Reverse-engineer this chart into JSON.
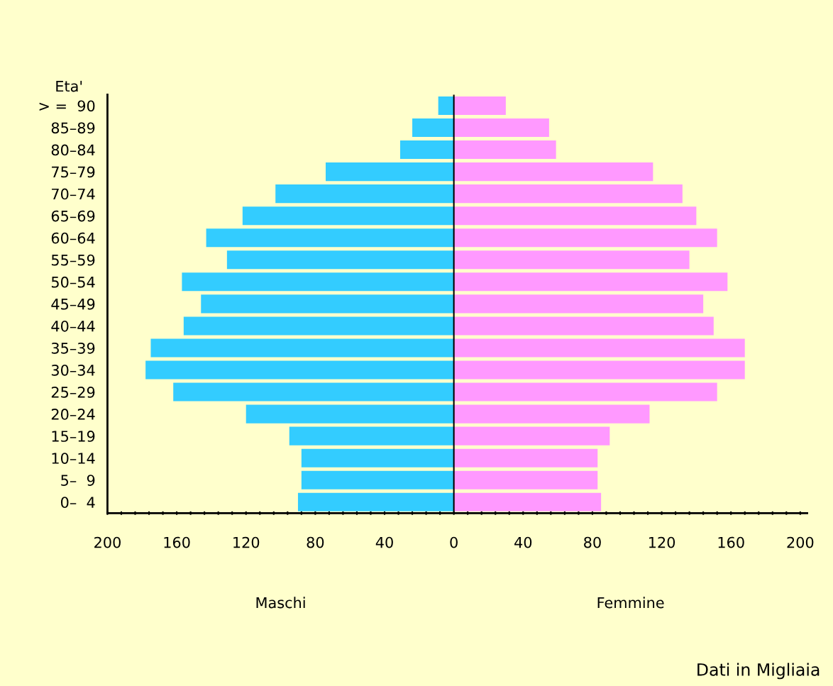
{
  "chart_data": {
    "type": "bar",
    "orientation": "horizontal",
    "stacked": true,
    "ylabel": "Eta'",
    "categories": [
      "> =  90",
      "85–89",
      "80–84",
      "75–79",
      "70–74",
      "65–69",
      "60–64",
      "55–59",
      "50–54",
      "45–49",
      "40–44",
      "35–39",
      "30–34",
      "25–29",
      "20–24",
      "15–19",
      "10–14",
      "5–  9",
      "0–  4"
    ],
    "series": [
      {
        "color": "#33ccff",
        "values": [
          -9,
          -24,
          -31,
          -74,
          -103,
          -122,
          -143,
          -131,
          -157,
          -146,
          -156,
          -175,
          -178,
          -162,
          -120,
          -95,
          -88,
          -88,
          -90
        ]
      },
      {
        "color": "#ff99ff",
        "values": [
          30,
          55,
          59,
          115,
          132,
          140,
          152,
          136,
          158,
          144,
          150,
          168,
          168,
          152,
          113,
          90,
          83,
          83,
          85
        ]
      }
    ],
    "xlim": [
      -200,
      204
    ],
    "xticks": [
      {
        "value": -200,
        "label": "200"
      },
      {
        "value": -192,
        "label": null
      },
      {
        "value": -184,
        "label": null
      },
      {
        "value": -176,
        "label": null
      },
      {
        "value": -168,
        "label": null
      },
      {
        "value": -160,
        "label": "160"
      },
      {
        "value": -152,
        "label": null
      },
      {
        "value": -144,
        "label": null
      },
      {
        "value": -136,
        "label": null
      },
      {
        "value": -128,
        "label": null
      },
      {
        "value": -120,
        "label": "120"
      },
      {
        "value": -112,
        "label": null
      },
      {
        "value": -104,
        "label": null
      },
      {
        "value": -96,
        "label": null
      },
      {
        "value": -88,
        "label": null
      },
      {
        "value": -80,
        "label": "80"
      },
      {
        "value": -72,
        "label": null
      },
      {
        "value": -64,
        "label": null
      },
      {
        "value": -56,
        "label": null
      },
      {
        "value": -48,
        "label": null
      },
      {
        "value": -40,
        "label": "40"
      },
      {
        "value": -32,
        "label": null
      },
      {
        "value": -24,
        "label": null
      },
      {
        "value": -16,
        "label": null
      },
      {
        "value": -8,
        "label": null
      },
      0,
      {
        "value": 8,
        "label": null
      },
      {
        "value": 16,
        "label": null
      },
      {
        "value": 24,
        "label": null
      },
      {
        "value": 32,
        "label": null
      },
      40,
      {
        "value": 48,
        "label": null
      },
      {
        "value": 56,
        "label": null
      },
      {
        "value": 64,
        "label": null
      },
      {
        "value": 72,
        "label": null
      },
      80,
      {
        "value": 88,
        "label": null
      },
      {
        "value": 96,
        "label": null
      },
      {
        "value": 104,
        "label": null
      },
      {
        "value": 112,
        "label": null
      },
      120,
      {
        "value": 128,
        "label": null
      },
      {
        "value": 136,
        "label": null
      },
      {
        "value": 144,
        "label": null
      },
      {
        "value": 152,
        "label": null
      },
      160,
      {
        "value": 168,
        "label": null
      },
      {
        "value": 176,
        "label": null
      },
      {
        "value": 184,
        "label": null
      },
      {
        "value": 192,
        "label": null
      },
      200
    ],
    "ref_lines": [
      {
        "axis": "x",
        "value": 0,
        "color": "#000000"
      }
    ],
    "annotations": [
      "Maschi",
      "Femmine",
      "Dati in Migliaia"
    ],
    "grid": false,
    "legend": false
  }
}
